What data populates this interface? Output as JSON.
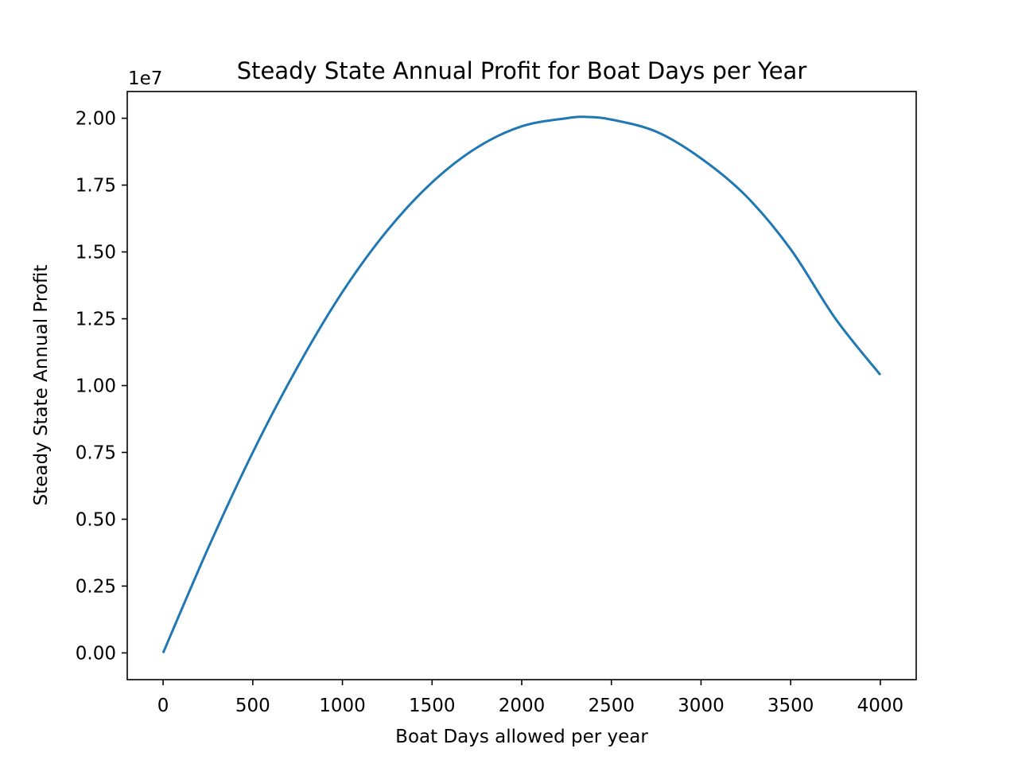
{
  "chart_data": {
    "type": "line",
    "title": "Steady State Annual Profit for Boat Days per Year",
    "xlabel": "Boat Days allowed per year",
    "ylabel": "Steady State Annual Profit",
    "y_offset_label": "1e7",
    "xlim": [
      -200,
      4200
    ],
    "ylim": [
      -0.1,
      2.1
    ],
    "y_scale_factor": 10000000,
    "x_ticks": [
      0,
      500,
      1000,
      1500,
      2000,
      2500,
      3000,
      3500,
      4000
    ],
    "x_tick_labels": [
      "0",
      "500",
      "1000",
      "1500",
      "2000",
      "2500",
      "3000",
      "3500",
      "4000"
    ],
    "y_ticks": [
      0,
      0.25,
      0.5,
      0.75,
      1.0,
      1.25,
      1.5,
      1.75,
      2.0
    ],
    "y_tick_labels": [
      "0.00",
      "0.25",
      "0.50",
      "0.75",
      "1.00",
      "1.25",
      "1.50",
      "1.75",
      "2.00"
    ],
    "grid": false,
    "series": [
      {
        "color": "#1f77b4",
        "x": [
          0,
          250,
          500,
          750,
          1000,
          1250,
          1500,
          1750,
          2000,
          2250,
          2360,
          2500,
          2750,
          3000,
          3250,
          3500,
          3750,
          4000
        ],
        "y": [
          0.0,
          0.39,
          0.75,
          1.07,
          1.35,
          1.58,
          1.76,
          1.89,
          1.97,
          2.0,
          2.005,
          1.995,
          1.95,
          1.85,
          1.71,
          1.51,
          1.25,
          1.04
        ]
      }
    ]
  }
}
